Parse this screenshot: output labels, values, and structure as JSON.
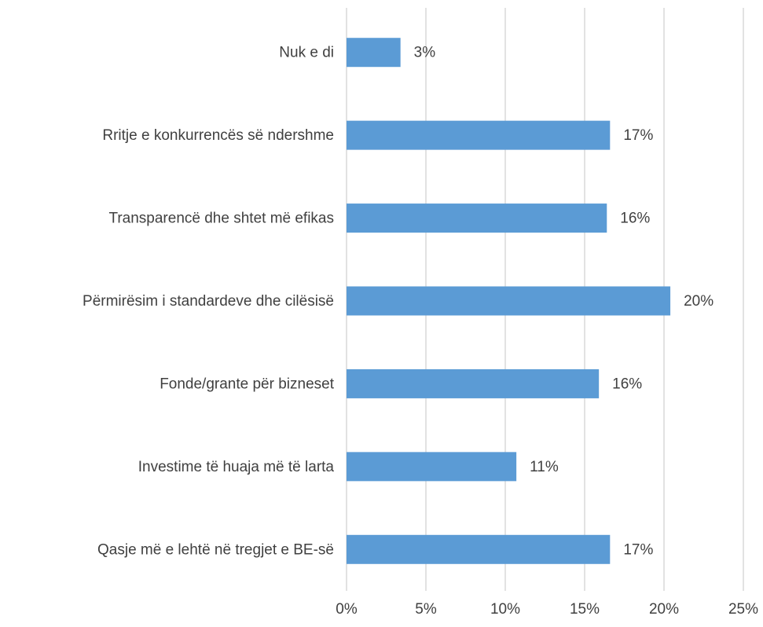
{
  "chart_data": {
    "type": "bar",
    "orientation": "horizontal",
    "categories": [
      "Nuk e di",
      "Rritje e konkurrencës së ndershme",
      "Transparencë dhe shtet më efikas",
      "Përmirësim i standardeve dhe cilësisë",
      "Fonde/grante për bizneset",
      "Investime të huaja më të larta",
      "Qasje më e lehtë në tregjet e BE-së"
    ],
    "values": [
      3.4,
      16.6,
      16.4,
      20.4,
      15.9,
      10.7,
      16.6
    ],
    "value_labels": [
      "3%",
      "17%",
      "16%",
      "20%",
      "16%",
      "11%",
      "17%"
    ],
    "color": "#5b9bd5",
    "xlim": [
      0,
      25
    ],
    "xticks": [
      {
        "value": 0,
        "label": "0%"
      },
      {
        "value": 5,
        "label": "5%"
      },
      {
        "value": 10,
        "label": "10%"
      },
      {
        "value": 15,
        "label": "15%"
      },
      {
        "value": 20,
        "label": "20%"
      },
      {
        "value": 25,
        "label": "25%"
      }
    ],
    "grid": true
  }
}
